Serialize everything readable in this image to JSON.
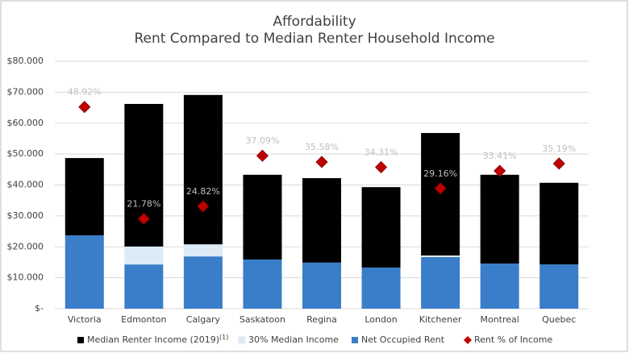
{
  "chart_data": {
    "type": "stacked_bar",
    "title": "Affordability",
    "subtitle": "Rent Compared to Median Renter Household Income",
    "categories": [
      "Victoria",
      "Edmonton",
      "Calgary",
      "Saskatoon",
      "Regina",
      "London",
      "Kitchener",
      "Montreal",
      "Quebec"
    ],
    "series": [
      {
        "name": "Median Renter Income (2019)",
        "name_note": "(1)",
        "color": "#000000",
        "values": [
          25.0,
          46.1,
          48.3,
          27.4,
          27.3,
          26.0,
          39.6,
          28.7,
          26.4
        ]
      },
      {
        "name": "30% Median Income",
        "color": "#ddebf7",
        "values": [
          0,
          5.8,
          3.9,
          0,
          0,
          0,
          0.5,
          0,
          0
        ]
      },
      {
        "name": "Net Occupied Rent",
        "color": "#3a7dc9",
        "values": [
          23.7,
          14.3,
          16.9,
          15.9,
          14.9,
          13.3,
          16.7,
          14.6,
          14.3
        ]
      },
      {
        "name": "Rent % of Income",
        "type": "scatter",
        "axis": "y2",
        "color": "#c00000",
        "values": [
          48.92,
          21.78,
          24.82,
          37.09,
          35.58,
          34.31,
          29.16,
          33.41,
          35.19
        ],
        "value_labels": [
          "48.92%",
          "21.78%",
          "24.82%",
          "37.09%",
          "35.58%",
          "34.31%",
          "29.16%",
          "33.41%",
          "35.19%"
        ]
      }
    ],
    "ylim": [
      0,
      80
    ],
    "yticks": [
      {
        "value": 0,
        "label": "$-"
      },
      {
        "value": 10,
        "label": "$10.000"
      },
      {
        "value": 20,
        "label": "$20.000"
      },
      {
        "value": 30,
        "label": "$30.000"
      },
      {
        "value": 40,
        "label": "$40.000"
      },
      {
        "value": 50,
        "label": "$50.000"
      },
      {
        "value": 60,
        "label": "$60.000"
      },
      {
        "value": 70,
        "label": "$70.000"
      },
      {
        "value": 80,
        "label": "$80.000"
      }
    ],
    "y2lim": [
      0,
      60
    ],
    "grid": true,
    "legend": "bottom"
  }
}
